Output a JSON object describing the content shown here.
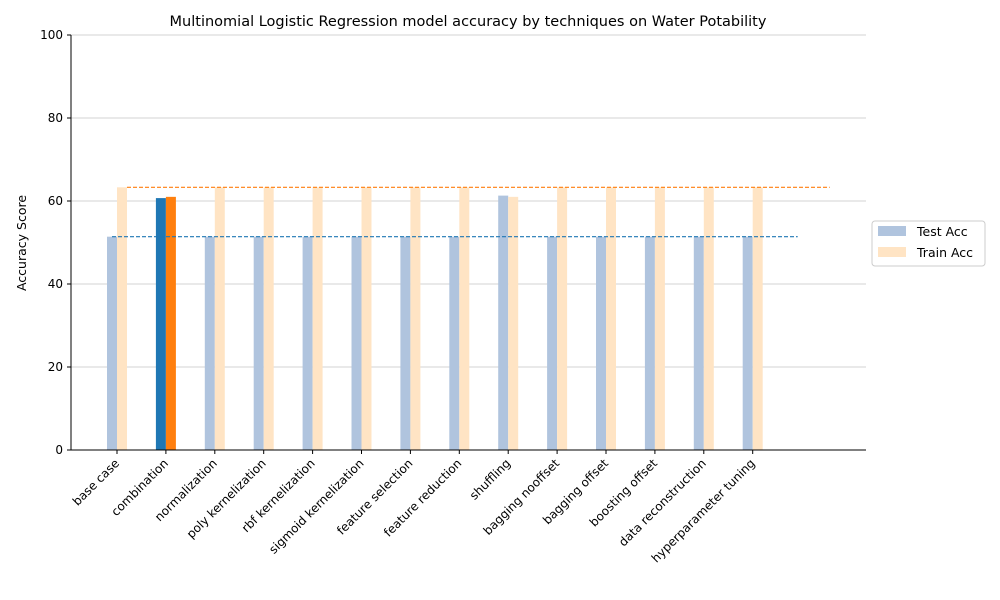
{
  "chart_data": {
    "type": "bar",
    "title": "Multinomial Logistic Regression model accuracy by techniques on Water Potability",
    "xlabel": "",
    "ylabel": "Accuracy Score",
    "ylim": [
      0,
      100
    ],
    "yticks": [
      0,
      20,
      40,
      60,
      80,
      100
    ],
    "grid": "horizontal",
    "legend_position": "right",
    "categories": [
      "base case",
      "combination",
      "normalization",
      "poly kernelization",
      "rbf kernelization",
      "sigmoid kernelization",
      "feature selection",
      "feature reduction",
      "shuffling",
      "bagging nooffset",
      "bagging offset",
      "boosting offset",
      "data reconstruction",
      "hyperparameter tuning"
    ],
    "series": [
      {
        "name": "Test Acc",
        "color": "#b0c4de",
        "highlight_color": "#1f77b4",
        "values": [
          51.4,
          60.7,
          51.4,
          51.4,
          51.4,
          51.4,
          51.4,
          51.4,
          61.3,
          51.4,
          51.4,
          51.4,
          51.4,
          51.4
        ]
      },
      {
        "name": "Train Acc",
        "color": "#ffe4c4",
        "highlight_color": "#ff7f0e",
        "values": [
          63.3,
          61.0,
          63.3,
          63.3,
          63.3,
          63.3,
          63.3,
          63.3,
          61.0,
          63.3,
          63.3,
          63.3,
          63.3,
          63.3
        ]
      }
    ],
    "highlight_category": "combination",
    "reference_lines": [
      {
        "series": "Test Acc",
        "value": 51.4,
        "color": "#1f77b4",
        "style": "dashed"
      },
      {
        "series": "Train Acc",
        "value": 63.3,
        "color": "#ff7f0e",
        "style": "dashed"
      }
    ]
  }
}
